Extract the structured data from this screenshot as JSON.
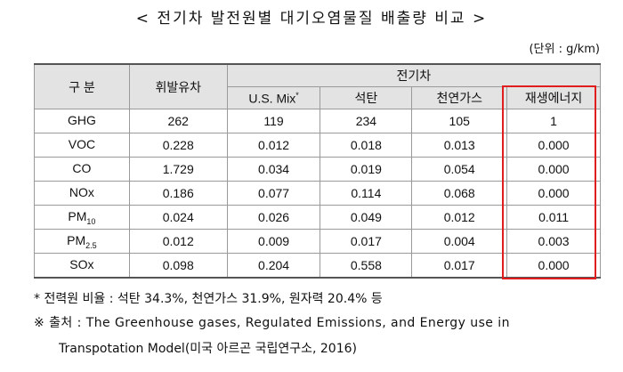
{
  "title": "< 전기차 발전원별 대기오염물질 배출량 비교 >",
  "unit": "(단위 : g/km)",
  "table": {
    "header": {
      "category": "구 분",
      "gasoline": "휘발유차",
      "ev_group": "전기차",
      "us_mix": "U.S. Mix",
      "us_mix_mark": "*",
      "coal": "석탄",
      "natural_gas": "천연가스",
      "renewable": "재생에너지"
    },
    "rows": [
      {
        "label": "GHG",
        "sub": "",
        "gasoline": "262",
        "us_mix": "119",
        "coal": "234",
        "natural_gas": "105",
        "renewable": "1"
      },
      {
        "label": "VOC",
        "sub": "",
        "gasoline": "0.228",
        "us_mix": "0.012",
        "coal": "0.018",
        "natural_gas": "0.013",
        "renewable": "0.000"
      },
      {
        "label": "CO",
        "sub": "",
        "gasoline": "1.729",
        "us_mix": "0.034",
        "coal": "0.019",
        "natural_gas": "0.054",
        "renewable": "0.000"
      },
      {
        "label": "NOx",
        "sub": "",
        "gasoline": "0.186",
        "us_mix": "0.077",
        "coal": "0.114",
        "natural_gas": "0.068",
        "renewable": "0.000"
      },
      {
        "label": "PM",
        "sub": "10",
        "gasoline": "0.024",
        "us_mix": "0.026",
        "coal": "0.049",
        "natural_gas": "0.012",
        "renewable": "0.011"
      },
      {
        "label": "PM",
        "sub": "2.5",
        "gasoline": "0.012",
        "us_mix": "0.009",
        "coal": "0.017",
        "natural_gas": "0.004",
        "renewable": "0.003"
      },
      {
        "label": "SOx",
        "sub": "",
        "gasoline": "0.098",
        "us_mix": "0.204",
        "coal": "0.558",
        "natural_gas": "0.017",
        "renewable": "0.000"
      }
    ]
  },
  "highlight_color": "#e21d1d",
  "notes": {
    "power_mix": "* 전력원 비율 : 석탄 34.3%, 천연가스 31.9%, 원자력 20.4% 등",
    "source_line1": "※ 출처 : The Greenhouse gases, Regulated Emissions, and Energy use in",
    "source_line2": "Transpotation Model(미국 아르곤 국립연구소, 2016)"
  }
}
